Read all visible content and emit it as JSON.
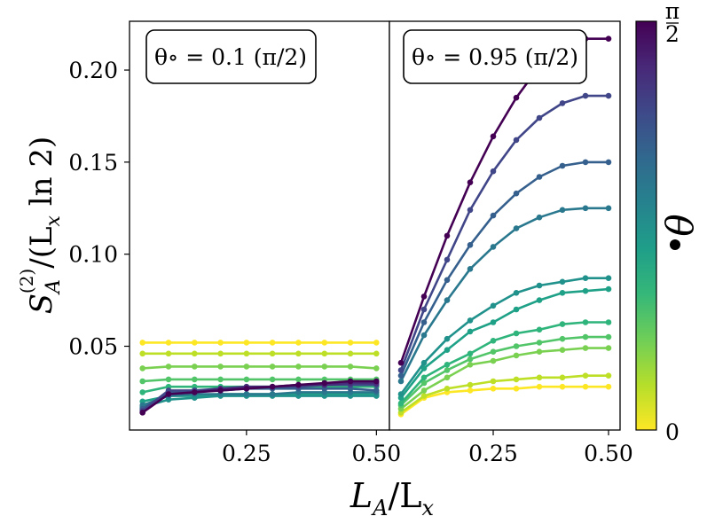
{
  "chart_data": [
    {
      "type": "line",
      "panel": "left",
      "annotation": "θ∘ = 0.1 (π/2)",
      "x": [
        0.05,
        0.1,
        0.15,
        0.2,
        0.25,
        0.3,
        0.35,
        0.4,
        0.45,
        0.5
      ],
      "xlim": [
        0.025,
        0.525
      ],
      "ylim": [
        0.0045,
        0.2265
      ],
      "xticks": [
        "0.25",
        "0.50"
      ],
      "series": [
        {
          "name": "θ=0.0",
          "color": "#fde725",
          "values": [
            0.052,
            0.052,
            0.052,
            0.052,
            0.052,
            0.052,
            0.052,
            0.052,
            0.052,
            0.052
          ]
        },
        {
          "name": "θ=0.08",
          "color": "#bddf26",
          "values": [
            0.046,
            0.046,
            0.046,
            0.046,
            0.046,
            0.046,
            0.046,
            0.046,
            0.046,
            0.046
          ]
        },
        {
          "name": "θ=0.17",
          "color": "#7ad151",
          "values": [
            0.038,
            0.039,
            0.039,
            0.039,
            0.039,
            0.039,
            0.039,
            0.039,
            0.039,
            0.038
          ]
        },
        {
          "name": "θ=0.25",
          "color": "#52c569",
          "values": [
            0.031,
            0.032,
            0.032,
            0.032,
            0.032,
            0.032,
            0.032,
            0.032,
            0.032,
            0.032
          ]
        },
        {
          "name": "θ=0.33",
          "color": "#2fb47c",
          "values": [
            0.025,
            0.028,
            0.028,
            0.028,
            0.028,
            0.028,
            0.028,
            0.028,
            0.028,
            0.028
          ]
        },
        {
          "name": "θ=0.42",
          "color": "#1fa187",
          "values": [
            0.02,
            0.023,
            0.023,
            0.024,
            0.024,
            0.024,
            0.024,
            0.024,
            0.024,
            0.024
          ]
        },
        {
          "name": "θ=0.5",
          "color": "#21918c",
          "values": [
            0.017,
            0.021,
            0.022,
            0.023,
            0.023,
            0.023,
            0.023,
            0.023,
            0.023,
            0.023
          ]
        },
        {
          "name": "θ=0.58",
          "color": "#2a788e",
          "values": [
            0.018,
            0.023,
            0.024,
            0.024,
            0.024,
            0.024,
            0.025,
            0.025,
            0.025,
            0.025
          ]
        },
        {
          "name": "θ=0.67",
          "color": "#355f8d",
          "values": [
            0.016,
            0.025,
            0.026,
            0.026,
            0.027,
            0.027,
            0.027,
            0.027,
            0.027,
            0.026
          ]
        },
        {
          "name": "θ=0.75",
          "color": "#404688",
          "values": [
            0.015,
            0.026,
            0.026,
            0.027,
            0.027,
            0.028,
            0.028,
            0.029,
            0.029,
            0.029
          ]
        },
        {
          "name": "θ=0.83",
          "color": "#472c7a",
          "values": [
            0.014,
            0.024,
            0.025,
            0.027,
            0.028,
            0.028,
            0.029,
            0.029,
            0.03,
            0.03
          ]
        },
        {
          "name": "θ=1.0",
          "color": "#440154",
          "values": [
            0.014,
            0.024,
            0.025,
            0.026,
            0.027,
            0.028,
            0.029,
            0.03,
            0.031,
            0.031
          ]
        }
      ]
    },
    {
      "type": "line",
      "panel": "right",
      "annotation": "θ∘ = 0.95 (π/2)",
      "x": [
        0.05,
        0.1,
        0.15,
        0.2,
        0.25,
        0.3,
        0.35,
        0.4,
        0.45,
        0.5
      ],
      "xlim": [
        0.025,
        0.525
      ],
      "ylim": [
        0.0045,
        0.2265
      ],
      "xticks": [
        "0.25",
        "0.50"
      ],
      "series": [
        {
          "name": "θ=0.0",
          "color": "#fde725",
          "values": [
            0.013,
            0.022,
            0.025,
            0.026,
            0.027,
            0.027,
            0.028,
            0.028,
            0.028,
            0.028
          ]
        },
        {
          "name": "θ=0.08",
          "color": "#bddf26",
          "values": [
            0.014,
            0.023,
            0.027,
            0.029,
            0.031,
            0.032,
            0.033,
            0.033,
            0.034,
            0.034
          ]
        },
        {
          "name": "θ=0.17",
          "color": "#7ad151",
          "values": [
            0.016,
            0.026,
            0.033,
            0.04,
            0.042,
            0.045,
            0.047,
            0.048,
            0.049,
            0.049
          ]
        },
        {
          "name": "θ=0.25",
          "color": "#52c569",
          "values": [
            0.018,
            0.03,
            0.037,
            0.043,
            0.047,
            0.05,
            0.052,
            0.054,
            0.055,
            0.055
          ]
        },
        {
          "name": "θ=0.33",
          "color": "#2fb47c",
          "values": [
            0.019,
            0.033,
            0.04,
            0.046,
            0.053,
            0.057,
            0.059,
            0.062,
            0.063,
            0.063
          ]
        },
        {
          "name": "θ=0.42",
          "color": "#1fa187",
          "values": [
            0.022,
            0.038,
            0.048,
            0.058,
            0.063,
            0.07,
            0.075,
            0.079,
            0.08,
            0.081
          ]
        },
        {
          "name": "θ=0.5",
          "color": "#21918c",
          "values": [
            0.024,
            0.041,
            0.054,
            0.064,
            0.072,
            0.079,
            0.083,
            0.085,
            0.087,
            0.087
          ]
        },
        {
          "name": "θ=0.58",
          "color": "#2a788e",
          "values": [
            0.031,
            0.056,
            0.075,
            0.092,
            0.104,
            0.114,
            0.12,
            0.124,
            0.125,
            0.125
          ]
        },
        {
          "name": "θ=0.67",
          "color": "#355f8d",
          "values": [
            0.034,
            0.063,
            0.086,
            0.105,
            0.121,
            0.133,
            0.142,
            0.148,
            0.15,
            0.15
          ]
        },
        {
          "name": "θ=0.75",
          "color": "#404688",
          "values": [
            0.037,
            0.07,
            0.097,
            0.124,
            0.145,
            0.162,
            0.174,
            0.182,
            0.186,
            0.186
          ]
        },
        {
          "name": "θ=1.0",
          "color": "#440154",
          "values": [
            0.041,
            0.077,
            0.11,
            0.139,
            0.164,
            0.185,
            0.202,
            0.212,
            0.217,
            0.217
          ]
        }
      ]
    }
  ],
  "axes": {
    "ylabel": "S_A^(2)/(L_x ln 2)",
    "ylabel_main": "S",
    "ylabel_sub": "A",
    "ylabel_sup": "(2)",
    "ylabel_rest": "/(L",
    "ylabel_rest_sub": "x",
    "ylabel_tail": " ln 2)",
    "xlabel": "L_A/L_x",
    "xlabel_main": "L",
    "xlabel_sub": "A",
    "xlabel_mid": "/L",
    "xlabel_sub2": "x",
    "yticks": [
      0.05,
      0.1,
      0.15,
      0.2
    ],
    "ytick_labels": [
      "0.05",
      "0.10",
      "0.15",
      "0.20"
    ]
  },
  "colorbar": {
    "label": "θ",
    "top_label": "π/2",
    "top_label_num": "π",
    "top_label_den": "2",
    "bottom_label": "0",
    "colormap": [
      "#fde725",
      "#b5de2b",
      "#6ece58",
      "#35b779",
      "#1f9e89",
      "#26828e",
      "#31688e",
      "#3e4989",
      "#482878",
      "#440154"
    ]
  }
}
